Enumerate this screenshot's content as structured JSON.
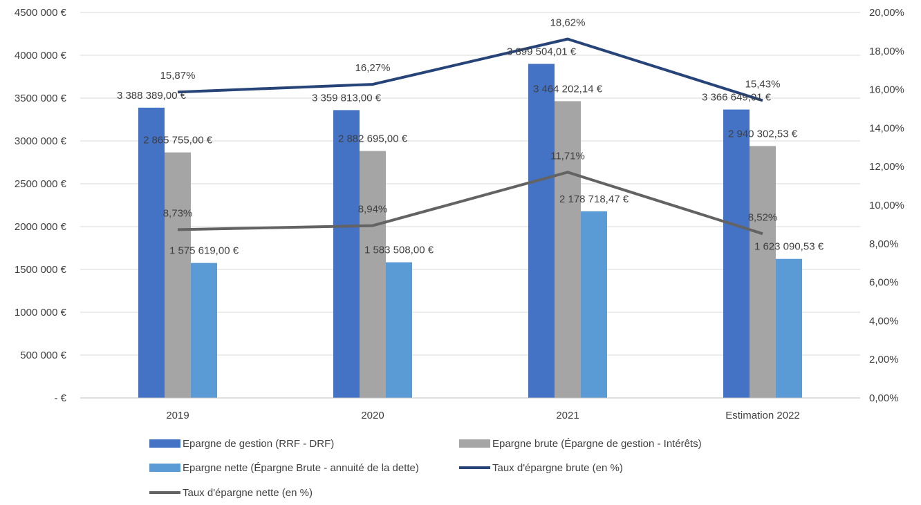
{
  "chart_data": {
    "type": "bar",
    "categories": [
      "2019",
      "2020",
      "2021",
      "Estimation 2022"
    ],
    "ylim": [
      0,
      4500000
    ],
    "y2lim": [
      0,
      0.2
    ],
    "y_ticks": [
      "-  €",
      "500 000 €",
      "1000 000 €",
      "1500 000 €",
      "2000 000 €",
      "2500 000 €",
      "3000 000 €",
      "3500 000 €",
      "4000 000 €",
      "4500 000 €"
    ],
    "y2_ticks": [
      "0,00%",
      "2,00%",
      "4,00%",
      "6,00%",
      "8,00%",
      "10,00%",
      "12,00%",
      "14,00%",
      "16,00%",
      "18,00%",
      "20,00%"
    ],
    "grid": true,
    "legend_position": "bottom",
    "bar_series": [
      {
        "name": "Epargne de gestion (RRF - DRF)",
        "color": "#4472c4",
        "values": [
          3388389.0,
          3359813.0,
          3899504.01,
          3366649.01
        ],
        "labels": [
          "3 388 389,00 €",
          "3 359 813,00 €",
          "3 899 504,01 €",
          "3 366 649,01 €"
        ]
      },
      {
        "name": "Epargne brute (Épargne de gestion - Intérêts)",
        "color": "#a5a5a5",
        "values": [
          2865755.0,
          2882695.0,
          3464202.14,
          2940302.53
        ],
        "labels": [
          "2 865 755,00 €",
          "2 882 695,00 €",
          "3 464 202,14 €",
          "2 940 302,53 €"
        ]
      },
      {
        "name": "Epargne nette (Épargne Brute - annuité de la dette)",
        "color": "#5b9bd5",
        "values": [
          1575619.0,
          1583508.0,
          2178718.47,
          1623090.53
        ],
        "labels": [
          "1 575 619,00 €",
          "1 583 508,00 €",
          "2 178 718,47 €",
          "1 623 090,53 €"
        ]
      }
    ],
    "line_series": [
      {
        "name": "Taux d'épargne brute (en %)",
        "color": "#264478",
        "values": [
          0.1587,
          0.1627,
          0.1862,
          0.1543
        ],
        "labels": [
          "15,87%",
          "16,27%",
          "18,62%",
          "15,43%"
        ]
      },
      {
        "name": "Taux d'épargne nette (en %)",
        "color": "#636363",
        "values": [
          0.0873,
          0.0894,
          0.1171,
          0.0852
        ],
        "labels": [
          "8,73%",
          "8,94%",
          "11,71%",
          "8,52%"
        ]
      }
    ]
  }
}
